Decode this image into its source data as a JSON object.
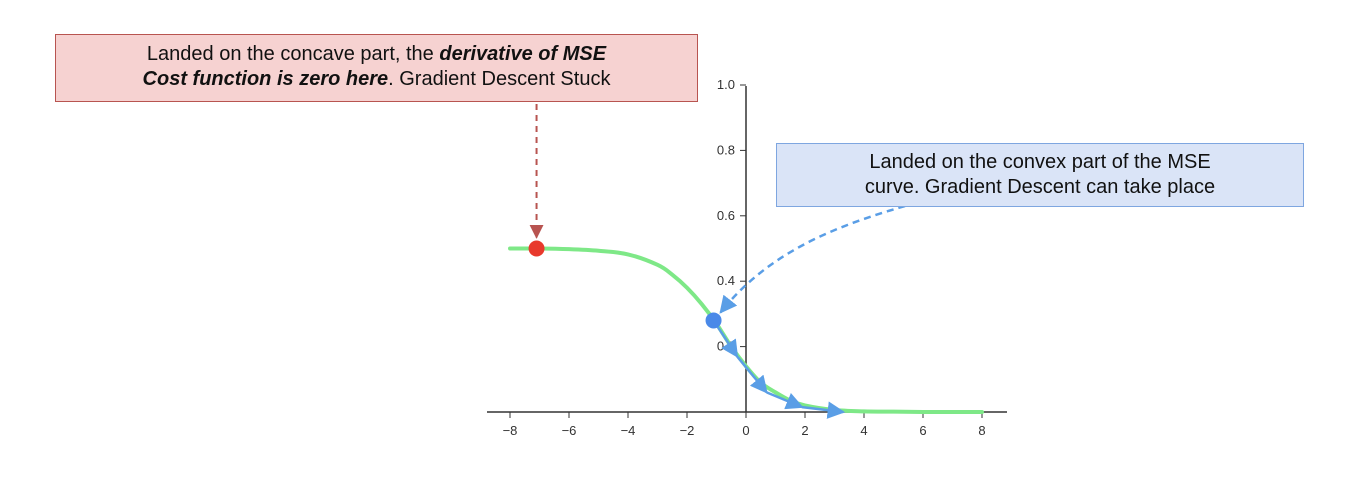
{
  "chart_data": {
    "type": "line",
    "title": "",
    "xlabel": "",
    "ylabel": "",
    "xlim": [
      -8,
      8
    ],
    "ylim": [
      0,
      1.0
    ],
    "x_ticks": [
      "−8",
      "−6",
      "−4",
      "−2",
      "0",
      "2",
      "4",
      "6",
      "8"
    ],
    "y_ticks": [
      "0.2",
      "0.4",
      "0.6",
      "0.8",
      "1.0"
    ],
    "series": [
      {
        "color": "#7ee887",
        "x": [
          -8,
          -7,
          -6,
          -5,
          -4,
          -3,
          -2.5,
          -2,
          -1.5,
          -1,
          -0.5,
          0,
          0.5,
          1,
          1.5,
          2,
          3,
          4,
          5,
          6,
          7,
          8
        ],
        "y": [
          0.5,
          0.5,
          0.498,
          0.493,
          0.482,
          0.45,
          0.42,
          0.38,
          0.33,
          0.27,
          0.2,
          0.14,
          0.09,
          0.06,
          0.035,
          0.02,
          0.006,
          0.002,
          0.001,
          0.0,
          0.0,
          0.0
        ]
      }
    ],
    "points": [
      {
        "name": "concave",
        "x": -7.1,
        "y": 0.5,
        "color": "#e8392c"
      },
      {
        "name": "convex",
        "x": -1.1,
        "y": 0.28,
        "color": "#4a89e8"
      }
    ],
    "descent_path": [
      {
        "x": -1.1,
        "y": 0.28
      },
      {
        "x": -0.3,
        "y": 0.17
      },
      {
        "x": 0.7,
        "y": 0.06
      },
      {
        "x": 1.9,
        "y": 0.015
      },
      {
        "x": 3.3,
        "y": 0.0
      }
    ],
    "path_color": "#5a9ee6",
    "grid": false,
    "annotations": [
      {
        "id": "concave",
        "color": "#b85450",
        "fill": "#f6d2d1",
        "line1": [
          {
            "text": "Landed on the concave part, the ",
            "style": "normal"
          },
          {
            "text": "derivative of MSE",
            "style": "bolditalic"
          }
        ],
        "line2": [
          {
            "text": "Cost function is zero here",
            "style": "bolditalic"
          },
          {
            "text": ". Gradient Descent Stuck",
            "style": "normal"
          }
        ]
      },
      {
        "id": "convex",
        "color": "#7ea6e0",
        "fill": "#dae4f7",
        "line1": [
          {
            "text": "Landed on the convex part of the MSE",
            "style": "normal"
          }
        ],
        "line2": [
          {
            "text": "curve. Gradient Descent can take place",
            "style": "normal"
          }
        ]
      }
    ]
  }
}
